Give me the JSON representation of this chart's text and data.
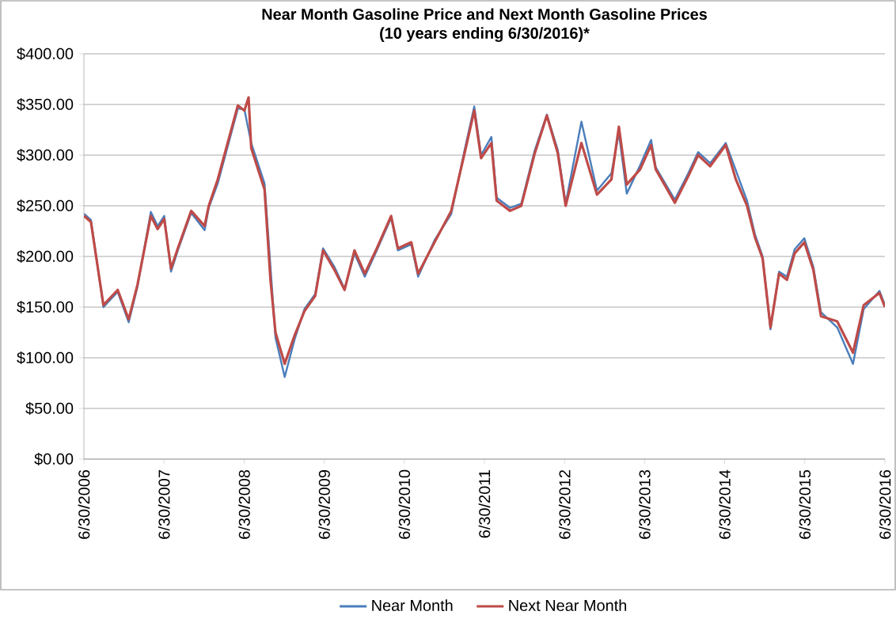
{
  "chart_data": {
    "type": "line",
    "title": "Near Month Gasoline Price and Next Month Gasoline Prices",
    "subtitle": "(10 years ending 6/30/2016)*",
    "x": [
      "2006-07-01",
      "2006-08-01",
      "2006-09-27",
      "2006-12-01",
      "2007-01-20",
      "2007-03-01",
      "2007-05-01",
      "2007-06-01",
      "2007-07-01",
      "2007-08-01",
      "2007-09-01",
      "2007-11-01",
      "2008-01-01",
      "2008-01-20",
      "2008-03-01",
      "2008-06-01",
      "2008-07-01",
      "2008-07-20",
      "2008-08-01",
      "2008-10-01",
      "2008-10-28",
      "2008-11-20",
      "2009-01-01",
      "2009-02-15",
      "2009-04-01",
      "2009-05-20",
      "2009-06-25",
      "2009-08-15",
      "2009-10-01",
      "2009-11-15",
      "2010-01-01",
      "2010-02-25",
      "2010-05-01",
      "2010-06-01",
      "2010-08-01",
      "2010-09-01",
      "2010-11-15",
      "2011-01-30",
      "2011-04-01",
      "2011-05-15",
      "2011-06-15",
      "2011-08-01",
      "2011-08-25",
      "2011-10-25",
      "2011-12-15",
      "2012-02-15",
      "2012-04-10",
      "2012-05-30",
      "2012-07-05",
      "2012-09-15",
      "2012-11-25",
      "2013-01-30",
      "2013-03-05",
      "2013-04-10",
      "2013-06-10",
      "2013-07-30",
      "2013-08-20",
      "2013-11-15",
      "2014-01-15",
      "2014-03-01",
      "2014-04-25",
      "2014-07-05",
      "2014-08-20",
      "2014-10-10",
      "2014-11-15",
      "2014-12-20",
      "2015-01-25",
      "2015-03-05",
      "2015-04-10",
      "2015-05-15",
      "2015-06-28",
      "2015-08-08",
      "2015-09-12",
      "2015-11-25",
      "2016-02-05",
      "2016-03-25",
      "2016-06-05",
      "2016-06-30"
    ],
    "series": [
      {
        "name": "Near Month",
        "color": "#4a7ebb",
        "values": [
          242,
          236,
          150,
          165,
          135,
          170,
          244,
          230,
          240,
          185,
          206,
          243,
          226,
          248,
          272,
          346,
          345,
          null,
          312,
          272,
          null,
          120,
          81,
          118,
          148,
          163,
          208,
          190,
          168,
          203,
          180,
          206,
          238,
          206,
          212,
          180,
          216,
          242,
          305,
          348,
          300,
          318,
          258,
          248,
          252,
          305,
          340,
          305,
          252,
          333,
          265,
          282,
          322,
          262,
          290,
          315,
          288,
          256,
          282,
          303,
          292,
          312,
          285,
          255,
          222,
          200,
          128,
          185,
          180,
          207,
          218,
          190,
          145,
          130,
          94,
          148,
          166,
          152
        ]
      },
      {
        "name": "Next Near Month",
        "color": "#be4b48",
        "values": [
          240,
          234,
          152,
          167,
          138,
          172,
          240,
          227,
          237,
          188,
          208,
          245,
          230,
          250,
          276,
          349,
          344,
          357,
          307,
          266,
          177,
          125,
          94,
          122,
          146,
          161,
          206,
          187,
          167,
          206,
          183,
          208,
          240,
          208,
          214,
          183,
          214,
          245,
          302,
          344,
          297,
          312,
          255,
          245,
          250,
          302,
          339,
          302,
          250,
          312,
          261,
          276,
          328,
          271,
          286,
          310,
          286,
          253,
          279,
          300,
          289,
          310,
          276,
          250,
          219,
          198,
          130,
          183,
          177,
          203,
          214,
          187,
          141,
          136,
          105,
          152,
          164,
          150
        ]
      }
    ],
    "xlim": [
      "2006-06-30",
      "2016-06-30"
    ],
    "xticks": [
      {
        "value": "2006-06-30",
        "label": "6/30/2006"
      },
      {
        "value": "2007-06-30",
        "label": "6/30/2007"
      },
      {
        "value": "2008-06-30",
        "label": "6/30/2008"
      },
      {
        "value": "2009-06-30",
        "label": "6/30/2009"
      },
      {
        "value": "2010-06-30",
        "label": "6/30/2010"
      },
      {
        "value": "2011-06-30",
        "label": "6/30/2011"
      },
      {
        "value": "2012-06-30",
        "label": "6/30/2012"
      },
      {
        "value": "2013-06-30",
        "label": "6/30/2013"
      },
      {
        "value": "2014-06-30",
        "label": "6/30/2014"
      },
      {
        "value": "2015-06-30",
        "label": "6/30/2015"
      },
      {
        "value": "2016-06-30",
        "label": "6/30/2016"
      }
    ],
    "ylim": [
      0,
      400
    ],
    "yticks": [
      {
        "value": 0,
        "label": "$0.00"
      },
      {
        "value": 50,
        "label": "$50.00"
      },
      {
        "value": 100,
        "label": "$100.00"
      },
      {
        "value": 150,
        "label": "$150.00"
      },
      {
        "value": 200,
        "label": "$200.00"
      },
      {
        "value": 250,
        "label": "$250.00"
      },
      {
        "value": 300,
        "label": "$300.00"
      },
      {
        "value": 350,
        "label": "$350.00"
      },
      {
        "value": 400,
        "label": "$400.00"
      }
    ],
    "grid": "y",
    "legend": "bottom",
    "line_style": "solid",
    "marker": "none"
  }
}
